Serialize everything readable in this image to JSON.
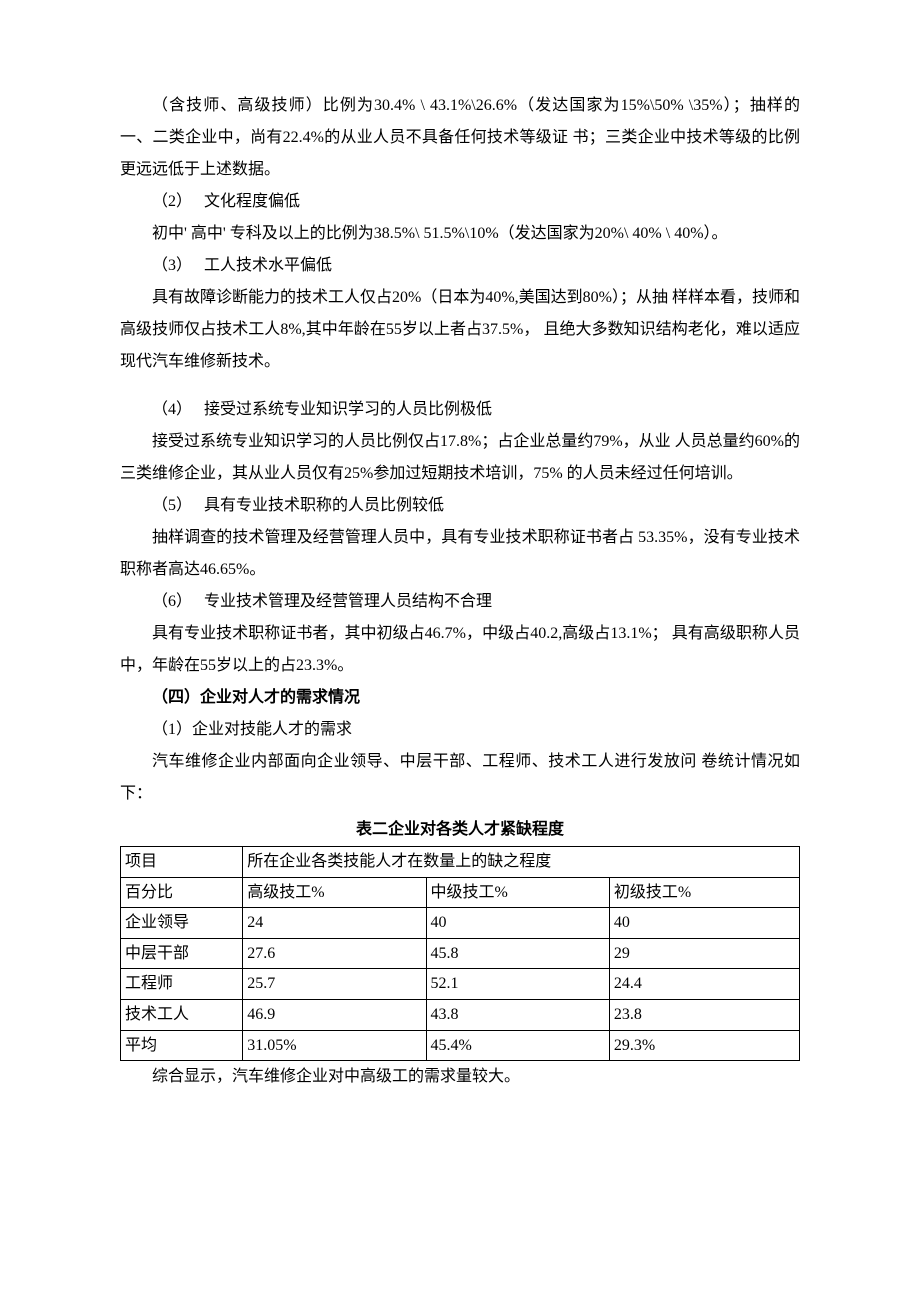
{
  "paragraphs": {
    "p1": "（含技师、高级技师）比例为30.4% \\ 43.1%\\26.6%（发达国家为15%\\50% \\35%）；抽样的一、二类企业中，尚有22.4%的从业人员不具备任何技术等级证 书；三类企业中技术等级的比例更远远低于上述数据。",
    "p2_title": "（2）　 文化程度偏低",
    "p2_body": "初中' 高中' 专科及以上的比例为38.5%\\ 51.5%\\10%（发达国家为20%\\ 40% \\ 40%）。",
    "p3_title": "（3）　 工人技术水平偏低",
    "p3_body": "具有故障诊断能力的技术工人仅占20%（日本为40%,美国达到80%）；从抽 样样本看，技师和高级技师仅占技术工人8%,其中年龄在55岁以上者占37.5%， 且绝大多数知识结构老化，难以适应现代汽车维修新技术。",
    "p4_title": "（4）　 接受过系统专业知识学习的人员比例极低",
    "p4_body": "接受过系统专业知识学习的人员比例仅占17.8%；占企业总量约79%，从业 人员总量约60%的三类维修企业，其从业人员仅有25%参加过短期技术培训，75% 的人员未经过任何培训。",
    "p5_title": "（5）　 具有专业技术职称的人员比例较低",
    "p5_body": "抽样调查的技术管理及经营管理人员中，具有专业技术职称证书者占 53.35%，没有专业技术职称者高达46.65%。",
    "p6_title": "（6）　 专业技术管理及经营管理人员结构不合理",
    "p6_body": "具有专业技术职称证书者，其中初级占46.7%，中级占40.2,高级占13.1%； 具有高级职称人员中，年龄在55岁以上的占23.3%。",
    "section4": "（四）企业对人才的需求情况",
    "s4_1_title": "（1）企业对技能人才的需求",
    "s4_1_body": "汽车维修企业内部面向企业领导、中层干部、工程师、技术工人进行发放问 卷统计情况如下：",
    "table_title": "表二企业对各类人才紧缺程度",
    "conclusion": "综合显示，汽车维修企业对中高级工的需求量较大。"
  },
  "table": {
    "header_row1": {
      "c1": "项目",
      "c2": "所在企业各类技能人才在数量上的缺之程度"
    },
    "header_row2": {
      "c1": "百分比",
      "c2": "高级技工%",
      "c3": "中级技工%",
      "c4": "初级技工%"
    },
    "rows": [
      {
        "c1": "企业领导",
        "c2": "24",
        "c3": "40",
        "c4": "40"
      },
      {
        "c1": "中层干部",
        "c2": "27.6",
        "c3": "45.8",
        "c4": "29"
      },
      {
        "c1": "工程师",
        "c2": "25.7",
        "c3": "52.1",
        "c4": "24.4"
      },
      {
        "c1": "技术工人",
        "c2": "46.9",
        "c3": "43.8",
        "c4": "23.8"
      },
      {
        "c1": "平均",
        "c2": "31.05%",
        "c3": "45.4%",
        "c4": "29.3%"
      }
    ],
    "border_color": "#000000",
    "background_color": "#ffffff"
  }
}
